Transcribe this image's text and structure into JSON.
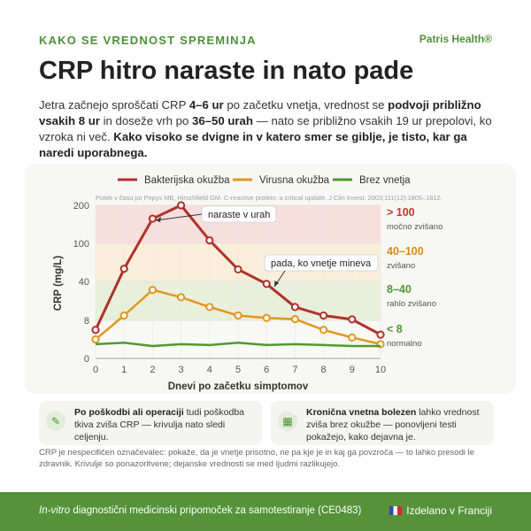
{
  "header": {
    "eyebrow": "KAKO SE VREDNOST SPREMINJA",
    "brand": "Patris Health®",
    "title": "CRP hitro naraste in nato pade"
  },
  "lead": {
    "t1": "Jetra začnejo sproščati CRP ",
    "b1": "4–6 ur",
    "t2": " po začetku vnetja, vrednost se ",
    "b2": "podvoji približno vsakih 8 ur",
    "t3": " in doseže vrh po ",
    "b3": "36–50 urah",
    "t4": " — nato se približno vsakih 19 ur prepolovi, ko vzroka ni več. ",
    "b4": "Kako visoko se dvigne in v katero smer se giblje, je tisto, kar ga naredi uporabnega."
  },
  "chart_data": {
    "type": "line",
    "source": "Potek v času po Pepys MB, Hirschfield GM. C-reactive protein: a critical update. J Clin Invest. 2003;111(12):1805–1812.",
    "xlabel": "Dnevi po začetku simptomov",
    "ylabel": "CRP (mg/L)",
    "x": [
      0,
      1,
      2,
      3,
      4,
      5,
      6,
      7,
      8,
      9,
      10
    ],
    "x_ticks": [
      "0",
      "1",
      "2",
      "3",
      "4",
      "5",
      "6",
      "7",
      "8",
      "9",
      "10"
    ],
    "y_ticks": [
      "0",
      "8",
      "40",
      "100",
      "200"
    ],
    "y_scale": "nonlinear (tick-spaced)",
    "series": [
      {
        "name": "Bakterijska okužba",
        "color": "#b0312b",
        "values": [
          6,
          60,
          165,
          200,
          108,
          59,
          38,
          19,
          12,
          8.8,
          5
        ]
      },
      {
        "name": "Virusna okužba",
        "color": "#e3961d",
        "values": [
          4,
          12,
          33,
          27,
          19,
          12,
          10,
          9,
          6,
          4.4,
          3
        ]
      },
      {
        "name": "Brez vnetja",
        "color": "#4e9a2e",
        "values": [
          3,
          3.3,
          2.6,
          3,
          2.8,
          3.3,
          2.8,
          3,
          2.8,
          2.6,
          2.6
        ]
      }
    ],
    "bands": [
      {
        "label": "> 100",
        "sub": "močno zvišano",
        "color": "#c0392b",
        "fill": "#f5dcda"
      },
      {
        "label": "40–100",
        "sub": "zvišano",
        "color": "#d98a12",
        "fill": "#f8ecd6"
      },
      {
        "label": "8–40",
        "sub": "rahlo zvišano",
        "color": "#4e9a2e",
        "fill": "#e5eed9"
      },
      {
        "label": "< 8",
        "sub": "normalno",
        "color": "#4e9a2e",
        "fill": "#f7f7f5"
      }
    ],
    "annotations": [
      {
        "text": "naraste v urah"
      },
      {
        "text": "pada, ko vnetje mineva"
      }
    ],
    "grid": true,
    "legend_position": "top"
  },
  "notes": [
    {
      "icon": "plaster-icon",
      "b": "Po poškodbi ali operaciji",
      "t": " tudi poškodba tkiva zviša CRP — krivulja nato sledi celjenju."
    },
    {
      "icon": "calendar-icon",
      "b": "Kronična vnetna bolezen",
      "t": " lahko vrednost zviša brez okužbe — ponovljeni testi pokažejo, kako dejavna je."
    }
  ],
  "footnote": "CRP je nespecifičen označevalec: pokaže, da je vnetje prisotno, ne pa kje je in kaj ga povzroča — to lahko presodi le zdravnik. Krivulje so ponazoritvene; dejanske vrednosti se med ljudmi razlikujejo.",
  "footer": {
    "italic": "In-vitro",
    "rest": " diagnostični medicinski pripomoček za samotestiranje (CE0483)",
    "made": "Izdelano v Franciji"
  }
}
